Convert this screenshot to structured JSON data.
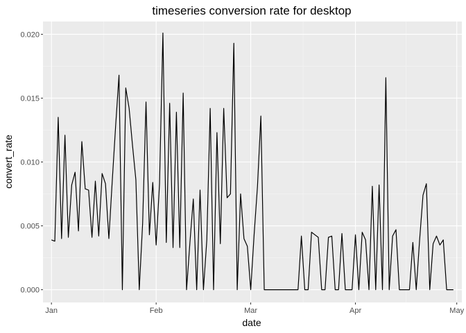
{
  "chart_data": {
    "type": "line",
    "title": "timeseries conversion rate for desktop",
    "xlabel": "date",
    "ylabel": "convert_rate",
    "x_major_ticks": [
      {
        "label": "Jan",
        "day": 0
      },
      {
        "label": "Feb",
        "day": 31
      },
      {
        "label": "Mar",
        "day": 59
      },
      {
        "label": "Apr",
        "day": 90
      },
      {
        "label": "May",
        "day": 120
      }
    ],
    "x_minor_days": [
      15.5,
      45,
      74.5,
      105
    ],
    "y_ticks": [
      0.0,
      0.005,
      0.01,
      0.015,
      0.02
    ],
    "y_tick_labels": [
      "0.000",
      "0.005",
      "0.010",
      "0.015",
      "0.020"
    ],
    "xlim_days": [
      -2.5,
      121.5
    ],
    "ylim": [
      -0.001,
      0.021
    ],
    "series": [
      {
        "name": "desktop",
        "x_days": [
          0,
          1,
          2,
          3,
          4,
          5,
          6,
          7,
          8,
          9,
          10,
          11,
          12,
          13,
          14,
          15,
          16,
          17,
          18,
          19,
          20,
          21,
          22,
          23,
          24,
          25,
          26,
          27,
          28,
          29,
          30,
          31,
          32,
          33,
          34,
          35,
          36,
          37,
          38,
          39,
          40,
          41,
          42,
          43,
          44,
          45,
          46,
          47,
          48,
          49,
          50,
          51,
          52,
          53,
          54,
          55,
          56,
          57,
          58,
          59,
          60,
          61,
          62,
          63,
          64,
          65,
          66,
          67,
          68,
          69,
          70,
          71,
          72,
          73,
          74,
          75,
          76,
          77,
          78,
          79,
          80,
          81,
          82,
          83,
          84,
          85,
          86,
          87,
          88,
          89,
          90,
          91,
          92,
          93,
          94,
          95,
          96,
          97,
          98,
          99,
          100,
          101,
          102,
          103,
          104,
          105,
          106,
          107,
          108,
          109,
          110,
          111,
          112,
          113,
          114,
          115,
          116,
          117,
          118,
          119
        ],
        "values": [
          0.0039,
          0.0038,
          0.0135,
          0.004,
          0.0121,
          0.0041,
          0.0082,
          0.0092,
          0.0046,
          0.0116,
          0.0079,
          0.0078,
          0.0041,
          0.0085,
          0.0042,
          0.0091,
          0.0083,
          0.004,
          0.0085,
          0.0128,
          0.0168,
          0.0,
          0.0158,
          0.0142,
          0.0113,
          0.0086,
          0.0,
          0.0052,
          0.0147,
          0.0043,
          0.0084,
          0.0035,
          0.0083,
          0.0201,
          0.0037,
          0.0146,
          0.0033,
          0.0139,
          0.0033,
          0.0154,
          0.0,
          0.0037,
          0.0071,
          0.0,
          0.0078,
          0.0,
          0.0039,
          0.0142,
          0.0,
          0.0123,
          0.0036,
          0.0142,
          0.0072,
          0.0075,
          0.0193,
          0.0,
          0.0075,
          0.004,
          0.0034,
          0.0,
          0.0043,
          0.0081,
          0.0136,
          0.0,
          0.0,
          0.0,
          0.0,
          0.0,
          0.0,
          0.0,
          0.0,
          0.0,
          0.0,
          0.0,
          0.0042,
          0.0,
          0.0,
          0.0045,
          0.0043,
          0.0041,
          0.0,
          0.0,
          0.0041,
          0.0042,
          0.0,
          0.0,
          0.0044,
          0.0,
          0.0,
          0.0,
          0.0043,
          0.0,
          0.0045,
          0.0039,
          0.0,
          0.0081,
          0.0,
          0.0082,
          0.0,
          0.0166,
          0.0,
          0.0042,
          0.0047,
          0.0,
          0.0,
          0.0,
          0.0,
          0.0037,
          0.0,
          0.0039,
          0.0074,
          0.0083,
          0.0,
          0.0036,
          0.0042,
          0.0035,
          0.0039,
          0.0,
          0.0,
          0.0
        ]
      }
    ]
  }
}
